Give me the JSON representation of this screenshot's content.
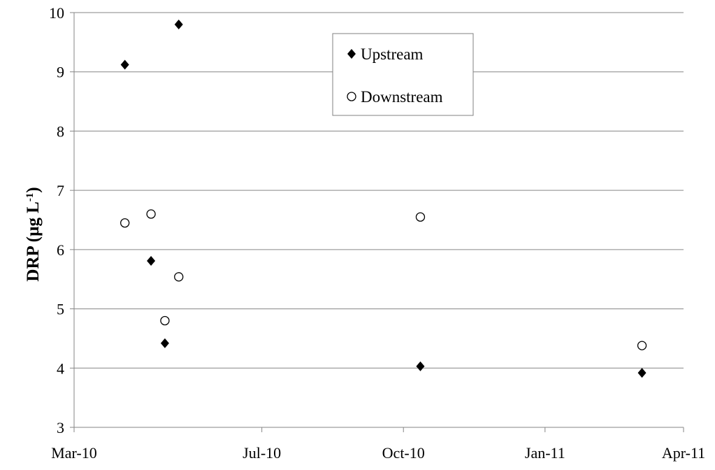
{
  "chart_data": {
    "type": "scatter",
    "title": "",
    "xlabel": "",
    "ylabel": "DRP (µg L",
    "ylabel_sup": "-1",
    "ylabel_tail": ")",
    "x_axis_type": "date",
    "xlim": [
      "2010-03-01",
      "2011-04-01"
    ],
    "xticks": [
      {
        "date": "2010-03-01",
        "label": "Mar-10"
      },
      {
        "date": "2010-07-01",
        "label": "Jul-10"
      },
      {
        "date": "2010-10-01",
        "label": "Oct-10"
      },
      {
        "date": "2011-01-01",
        "label": "Jan-11"
      },
      {
        "date": "2011-04-01",
        "label": "Apr-11"
      }
    ],
    "ylim": [
      3,
      10
    ],
    "yticks": [
      3,
      4,
      5,
      6,
      7,
      8,
      9,
      10
    ],
    "grid": "horizontal",
    "legend_position": "top-center",
    "series": [
      {
        "name": "Upstream",
        "marker": "diamond-filled",
        "color": "#000000",
        "points": [
          {
            "x": "2010-04-03",
            "y": 9.12
          },
          {
            "x": "2010-04-20",
            "y": 5.81
          },
          {
            "x": "2010-04-29",
            "y": 4.42
          },
          {
            "x": "2010-05-08",
            "y": 9.8
          },
          {
            "x": "2010-10-12",
            "y": 4.03
          },
          {
            "x": "2011-03-05",
            "y": 3.92
          }
        ]
      },
      {
        "name": "Downstream",
        "marker": "circle-open",
        "color": "#000000",
        "points": [
          {
            "x": "2010-04-03",
            "y": 6.45
          },
          {
            "x": "2010-04-20",
            "y": 6.6
          },
          {
            "x": "2010-04-29",
            "y": 4.8
          },
          {
            "x": "2010-05-08",
            "y": 5.54
          },
          {
            "x": "2010-10-12",
            "y": 6.55
          },
          {
            "x": "2011-03-05",
            "y": 4.38
          }
        ]
      }
    ]
  }
}
